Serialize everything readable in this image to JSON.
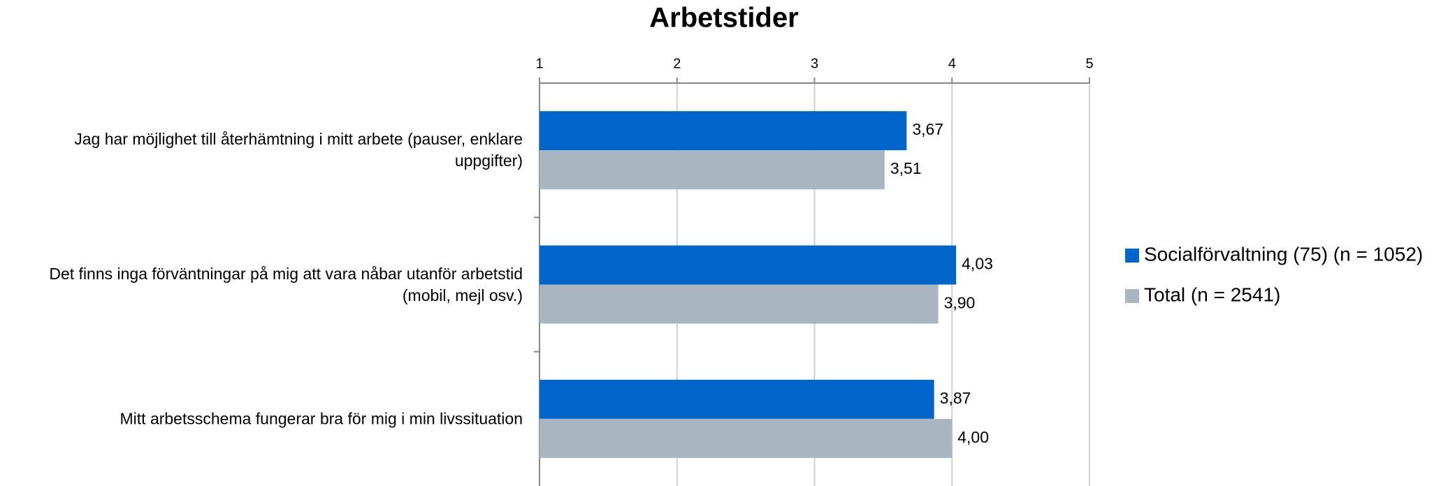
{
  "chart_data": {
    "type": "bar",
    "orientation": "horizontal",
    "title": "Arbetstider",
    "categories": [
      "Jag har möjlighet till återhämtning i mitt arbete (pauser, enklare uppgifter)",
      "Det finns inga förväntningar på mig att vara nåbar utanför arbetstid (mobil, mejl osv.)",
      "Mitt arbetsschema fungerar bra för mig i min livssituation"
    ],
    "series": [
      {
        "name": "Socialförvaltning (75) (n = 1052)",
        "color": "#0066cc",
        "values": [
          3.67,
          4.03,
          3.87
        ],
        "value_labels": [
          "3,67",
          "4,03",
          "3,87"
        ]
      },
      {
        "name": "Total (n = 2541)",
        "color": "#a9b6c2",
        "values": [
          3.51,
          3.9,
          4.0
        ],
        "value_labels": [
          "3,51",
          "3,90",
          "4,00"
        ]
      }
    ],
    "xlim": [
      1,
      5
    ],
    "xticks": [
      1,
      2,
      3,
      4,
      5
    ],
    "grid": true,
    "legend": "right"
  }
}
